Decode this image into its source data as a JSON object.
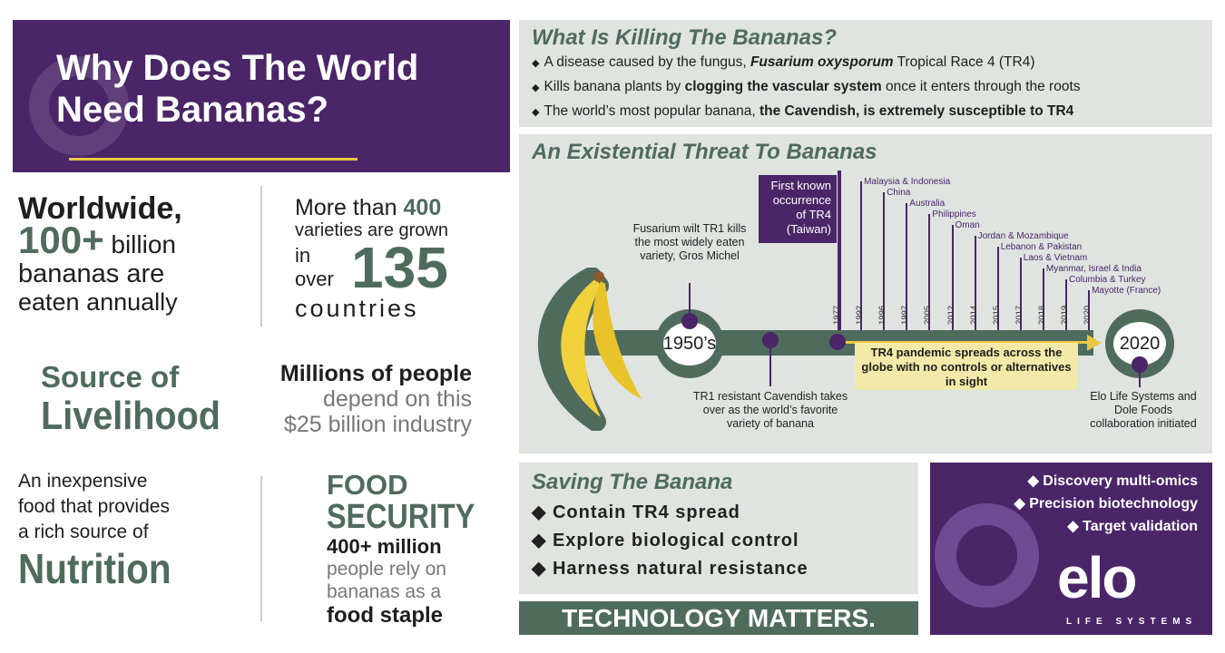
{
  "title": "Why Does The World Need Bananas?",
  "stats": {
    "worldwide": {
      "l1": "Worldwide,",
      "l2a": "100+",
      "l2b": " billion",
      "l3": "bananas are",
      "l4": "eaten annually"
    },
    "varieties": {
      "l1a": "More than ",
      "l1b": "400",
      "l2": "varieties are grown",
      "l3a": "in",
      "l3b": "over",
      "num": "135",
      "l4": "countries"
    },
    "livelihood": {
      "l1": "Source of",
      "l2": "Livelihood",
      "r1": "Millions of people",
      "r2": "depend on this",
      "r3": "$25 billion industry"
    },
    "nutrition": {
      "l1": "An inexpensive",
      "l2": "food that provides",
      "l3": "a rich source of",
      "l4": "Nutrition"
    },
    "food": {
      "l1": "FOOD",
      "l2": "SECURITY",
      "l3": "400+ million",
      "l4": "people rely on",
      "l5": "bananas as a",
      "l6": "food staple"
    }
  },
  "killing": {
    "title": "What Is Killing The Bananas?",
    "b1": {
      "a": "A disease caused by the fungus, ",
      "b": "Fusarium oxysporum",
      "c": " Tropical Race 4 (TR4)"
    },
    "b2": {
      "a": "Kills banana plants by ",
      "b": "clogging the vascular system",
      "c": " once it enters through the roots"
    },
    "b3": {
      "a": "The world’s most popular banana, ",
      "b": "the Cavendish, is extremely susceptible to TR4"
    }
  },
  "threat": {
    "title": "An Existential Threat To Bananas",
    "tr1": "Fusarium wilt TR1 kills the most widely eaten variety, Gros Michel",
    "c1950": "1950’s",
    "c2020": "2020",
    "cavendish": "TR1 resistant Cavendish takes over as the world’s favorite variety of banana",
    "first": "First known occurrence of TR4 (Taiwan)",
    "pandemic": "TR4 pandemic spreads across the globe with no controls or alternatives in sight",
    "elo": "Elo Life Systems and Dole Foods collaboration initiated",
    "years": [
      {
        "year": "1977",
        "country": ""
      },
      {
        "year": "1992",
        "country": "Malaysia & Indonesia"
      },
      {
        "year": "1996",
        "country": "China"
      },
      {
        "year": "1997",
        "country": "Australia"
      },
      {
        "year": "2005",
        "country": "Philippines"
      },
      {
        "year": "2012",
        "country": "Oman"
      },
      {
        "year": "2014",
        "country": "Jordan & Mozambique"
      },
      {
        "year": "2015",
        "country": "Lebanon & Pakistan"
      },
      {
        "year": "2017",
        "country": "Laos & Vietnam"
      },
      {
        "year": "2018",
        "country": "Myanmar, Israel & India"
      },
      {
        "year": "2019",
        "country": "Columbia & Turkey"
      },
      {
        "year": "2020",
        "country": "Mayotte (France)"
      }
    ]
  },
  "saving": {
    "title": "Saving The Banana",
    "items": [
      "Contain TR4 spread",
      "Explore biological control",
      "Harness natural resistance"
    ],
    "footer": "TECHNOLOGY MATTERS."
  },
  "elo": {
    "items": [
      "Discovery multi-omics",
      "Precision biotechnology",
      "Target validation"
    ],
    "logo": "elo",
    "tagline": "LIFE SYSTEMS"
  },
  "colors": {
    "purple": "#4a2568",
    "green": "#4f6b5c",
    "panel": "#dfe4e1",
    "highlight": "#f3e9a8",
    "banana": "#f2d23c"
  }
}
